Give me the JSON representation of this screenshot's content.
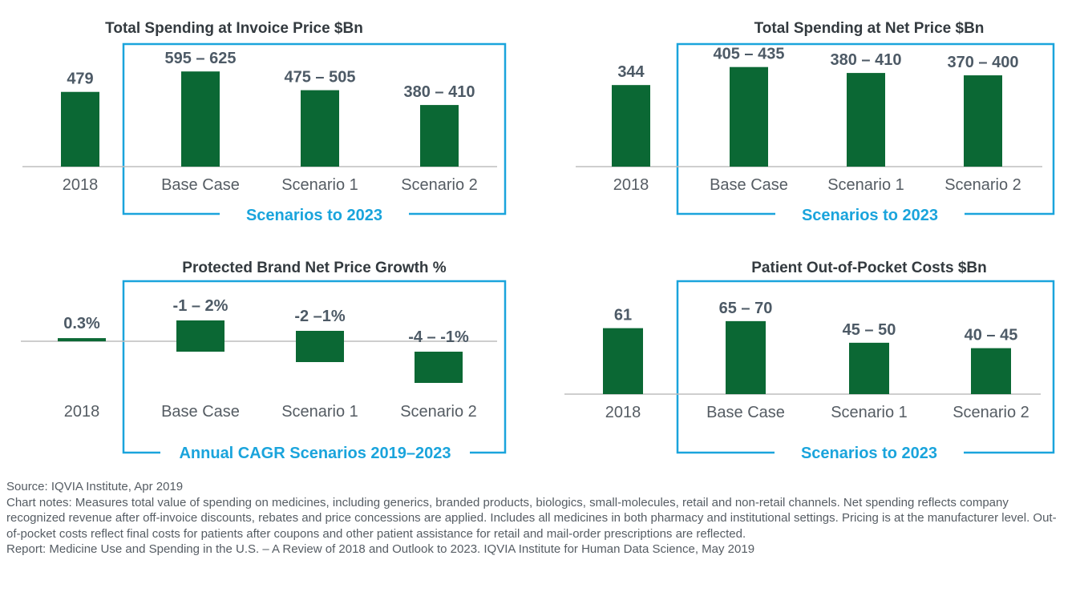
{
  "colors": {
    "bar": "#0b6834",
    "frame": "#1aa4dc",
    "axis": "#bdbdbd"
  },
  "chart_data": [
    {
      "type": "bar",
      "title": "Total Spending at Invoice Price $Bn",
      "categories": [
        "2018",
        "Base Case",
        "Scenario 1",
        "Scenario 2"
      ],
      "value_labels": [
        "479",
        "595 – 625",
        "475 – 505",
        "380 – 410"
      ],
      "ranges": [
        [
          0,
          479
        ],
        [
          0,
          610
        ],
        [
          0,
          490
        ],
        [
          0,
          395
        ]
      ],
      "ylim": [
        0,
        760
      ],
      "group_label": "Scenarios to 2023"
    },
    {
      "type": "bar",
      "title": "Total Spending at Net Price $Bn",
      "categories": [
        "2018",
        "Base Case",
        "Scenario 1",
        "Scenario 2"
      ],
      "value_labels": [
        "344",
        "405 – 435",
        "380 – 410",
        "370 – 400"
      ],
      "ranges": [
        [
          0,
          344
        ],
        [
          0,
          420
        ],
        [
          0,
          395
        ],
        [
          0,
          385
        ]
      ],
      "ylim": [
        0,
        500
      ],
      "group_label": "Scenarios to 2023"
    },
    {
      "type": "bar",
      "title": "Protected Brand Net Price Growth %",
      "categories": [
        "2018",
        "Base Case",
        "Scenario 1",
        "Scenario 2"
      ],
      "value_labels": [
        "0.3%",
        "-1 – 2%",
        "-2 –1%",
        "-4 – -1%"
      ],
      "ranges": [
        [
          0,
          0.3
        ],
        [
          -1,
          2
        ],
        [
          -2,
          1
        ],
        [
          -4,
          -1
        ]
      ],
      "ylim": [
        -4.6,
        3.8
      ],
      "group_label": "Annual CAGR Scenarios 2019–2023"
    },
    {
      "type": "bar",
      "title": "Patient Out-of-Pocket Costs $Bn",
      "categories": [
        "2018",
        "Base Case",
        "Scenario 1",
        "Scenario 2"
      ],
      "value_labels": [
        "61",
        "65 – 70",
        "45 – 50",
        "40 – 45"
      ],
      "ranges": [
        [
          0,
          61
        ],
        [
          0,
          67.5
        ],
        [
          0,
          47.5
        ],
        [
          0,
          42.5
        ]
      ],
      "ylim": [
        0,
        100
      ],
      "group_label": "Scenarios to 2023"
    }
  ],
  "notes": {
    "source": "Source: IQVIA Institute, Apr 2019",
    "chart_notes": "Chart notes: Measures total value of spending on medicines, including generics, branded products, biologics, small-molecules, retail and non-retail channels. Net spending reflects company recognized revenue after off-invoice discounts, rebates and price concessions are applied. Includes all medicines in both pharmacy and institutional settings. Pricing is at the manufacturer level. Out-of-pocket costs reflect final costs for patients after coupons and other patient assistance for retail and mail-order prescriptions are reflected.",
    "report": "Report: Medicine Use and Spending in the U.S. – A Review of 2018 and Outlook to 2023. IQVIA Institute for Human Data Science, May 2019"
  }
}
